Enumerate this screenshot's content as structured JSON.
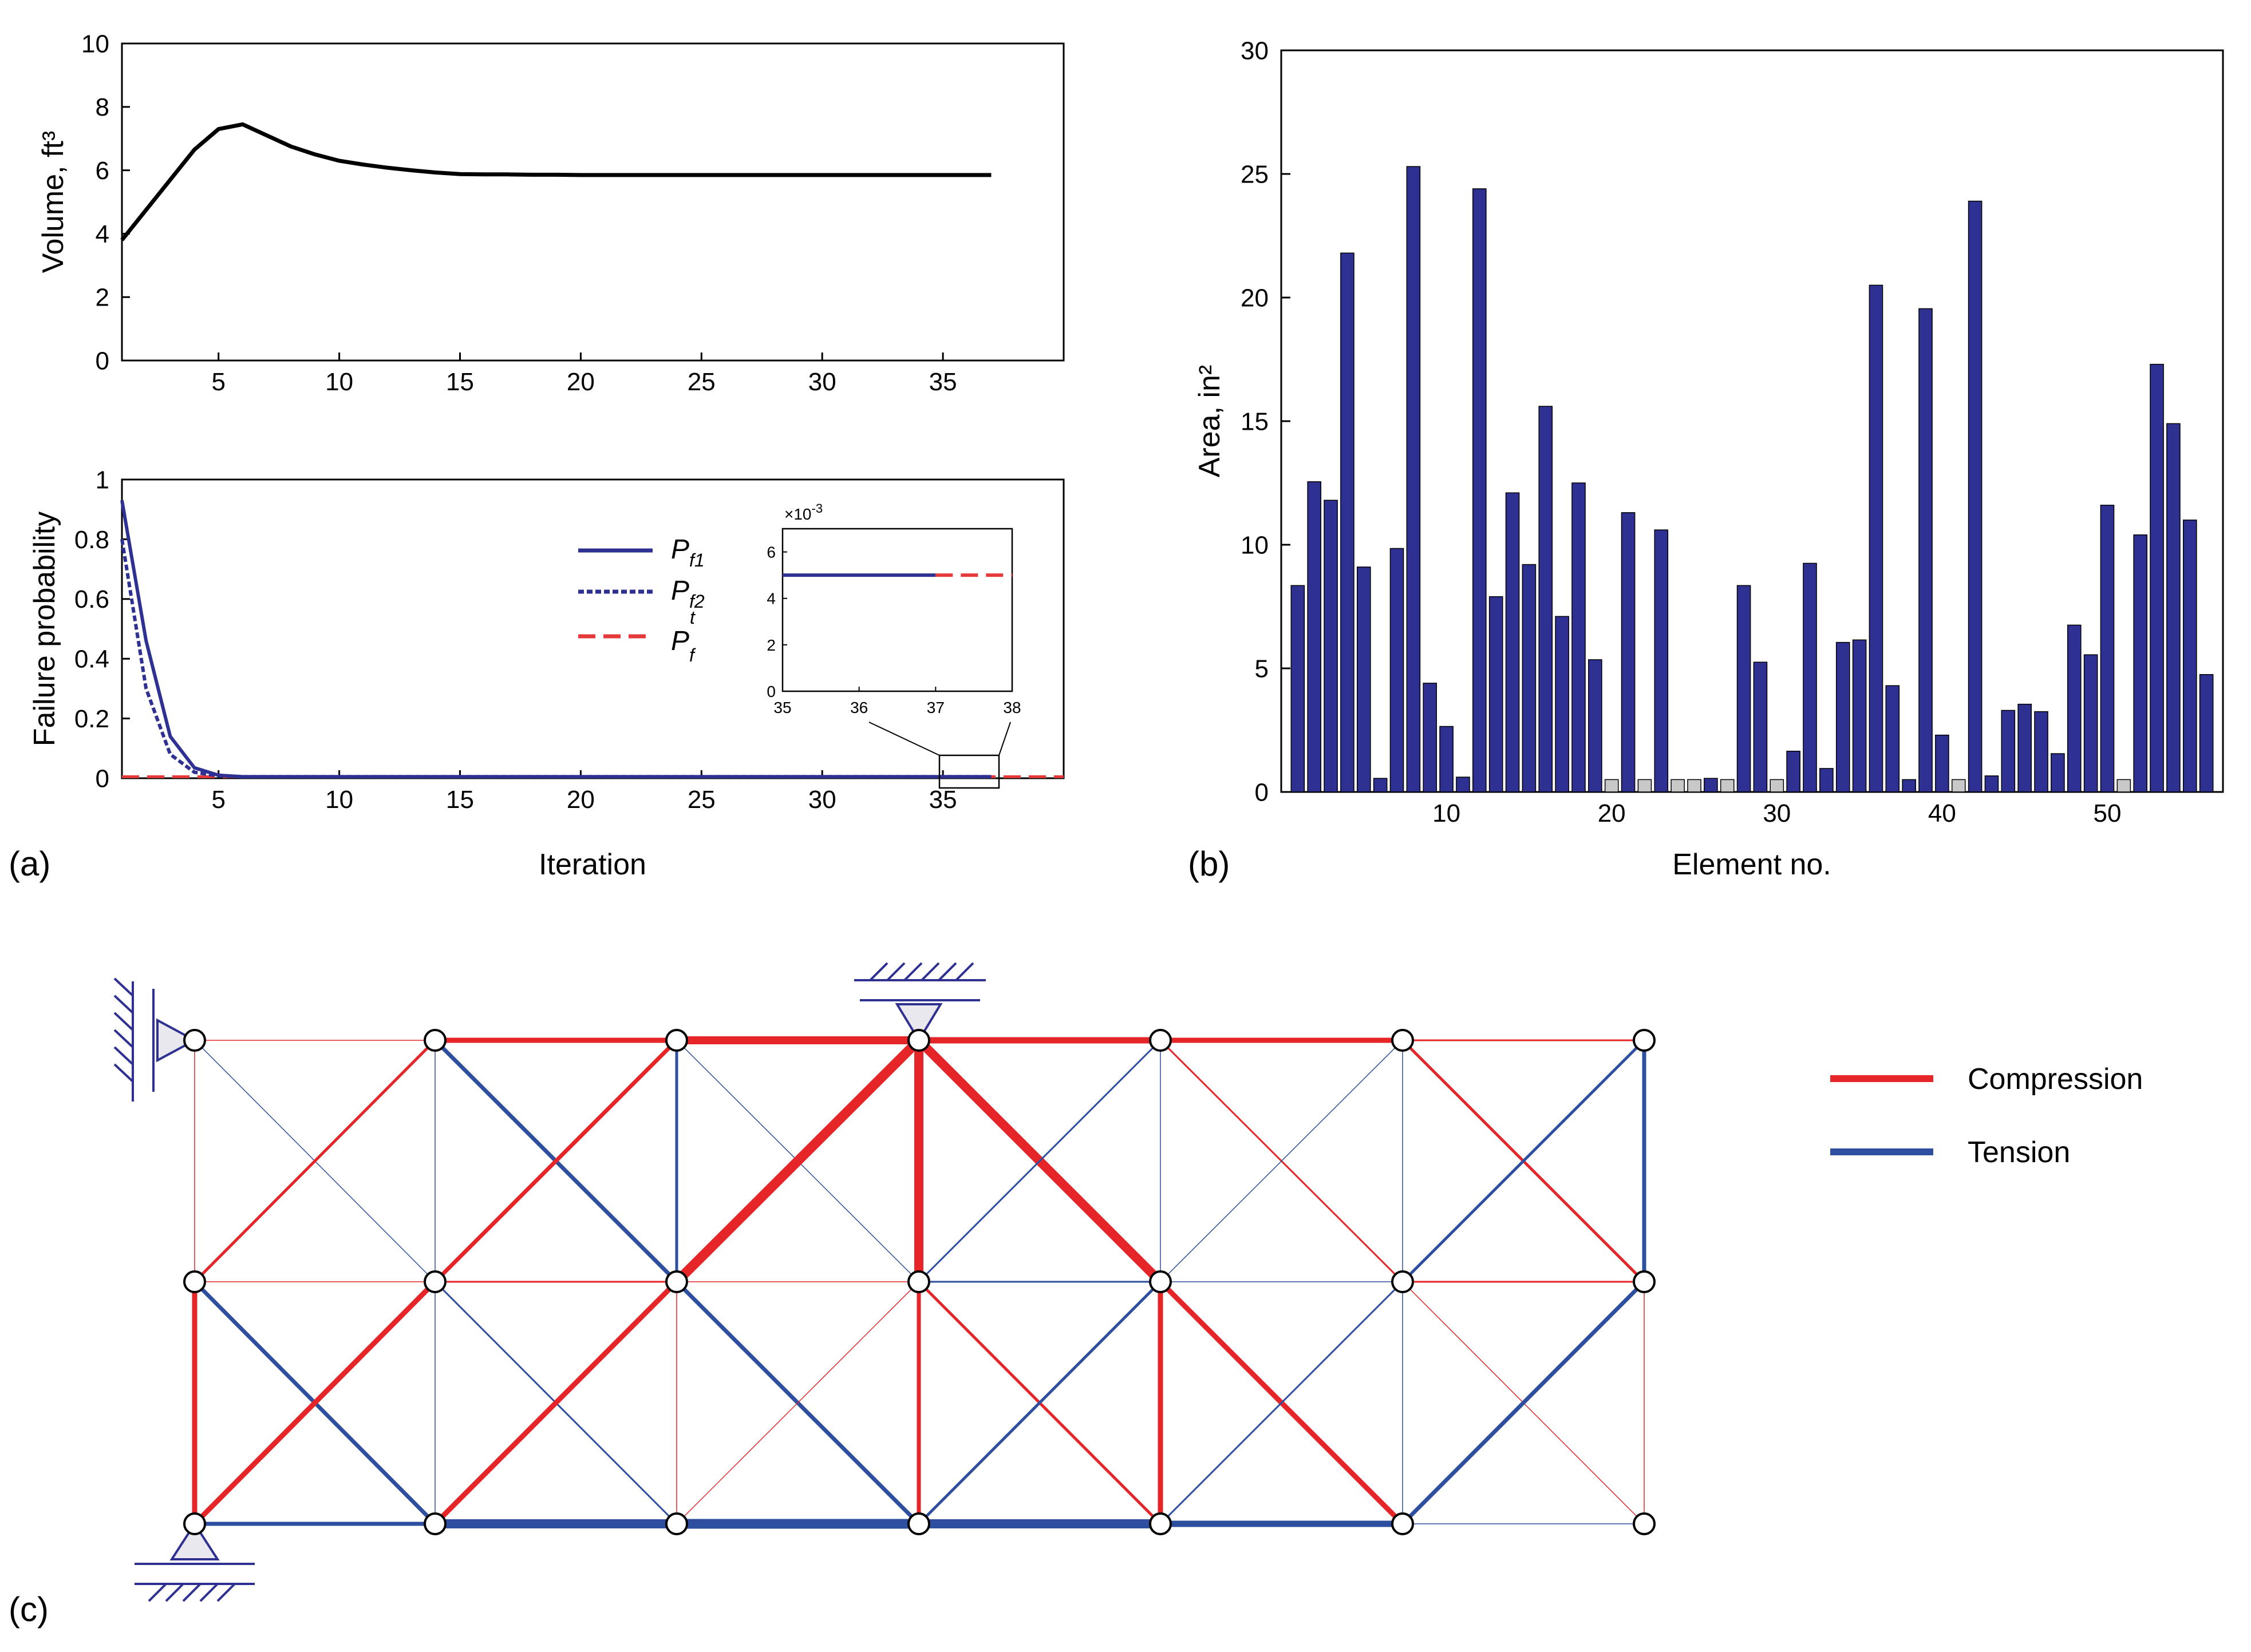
{
  "panels": {
    "a": "(a)",
    "b": "(b)",
    "c": "(c)"
  },
  "chart_data": [
    {
      "id": "volume",
      "type": "line",
      "title": "",
      "xlabel": "",
      "ylabel": "Volume, ft³",
      "xlim": [
        1,
        40
      ],
      "ylim": [
        0,
        10
      ],
      "xticks": [
        "5",
        "10",
        "15",
        "20",
        "25",
        "30",
        "35"
      ],
      "yticks": [
        "0",
        "2",
        "4",
        "6",
        "8",
        "10"
      ],
      "x": [
        1,
        2,
        3,
        4,
        5,
        6,
        7,
        8,
        9,
        10,
        11,
        12,
        13,
        14,
        15,
        16,
        17,
        18,
        19,
        20,
        21,
        22,
        23,
        24,
        25,
        26,
        27,
        28,
        29,
        30,
        31,
        32,
        33,
        34,
        35,
        36,
        37
      ],
      "series": [
        {
          "name": "Volume",
          "color": "#000000",
          "values": [
            3.8,
            4.75,
            5.7,
            6.65,
            7.3,
            7.45,
            7.1,
            6.75,
            6.5,
            6.3,
            6.18,
            6.08,
            6.0,
            5.93,
            5.88,
            5.87,
            5.87,
            5.86,
            5.86,
            5.85,
            5.85,
            5.85,
            5.85,
            5.85,
            5.85,
            5.85,
            5.85,
            5.85,
            5.85,
            5.85,
            5.85,
            5.85,
            5.85,
            5.85,
            5.85,
            5.85,
            5.85
          ]
        }
      ]
    },
    {
      "id": "failure",
      "type": "line",
      "title": "",
      "xlabel": "Iteration",
      "ylabel": "Failure probability",
      "xlim": [
        1,
        40
      ],
      "ylim": [
        0,
        1
      ],
      "xticks": [
        "5",
        "10",
        "15",
        "20",
        "25",
        "30",
        "35"
      ],
      "yticks": [
        "0",
        "0.2",
        "0.4",
        "0.6",
        "0.8",
        "1"
      ],
      "legend_location": "top-right",
      "series": [
        {
          "name": "P",
          "sub": "f1",
          "sup": "",
          "color": "#2e3192",
          "style": "solid",
          "x": [
            1,
            2,
            3,
            4,
            5,
            6,
            7,
            8,
            10,
            15,
            20,
            25,
            30,
            35,
            37
          ],
          "values": [
            0.93,
            0.46,
            0.14,
            0.035,
            0.01,
            0.005,
            0.005,
            0.005,
            0.005,
            0.005,
            0.005,
            0.005,
            0.005,
            0.005,
            0.005
          ]
        },
        {
          "name": "P",
          "sub": "f2",
          "sup": "",
          "color": "#2e3192",
          "style": "dotted",
          "x": [
            1,
            2,
            3,
            4,
            5,
            6,
            7,
            8,
            10,
            15,
            20,
            25,
            30,
            35,
            37
          ],
          "values": [
            0.8,
            0.3,
            0.08,
            0.02,
            0.008,
            0.005,
            0.005,
            0.005,
            0.005,
            0.005,
            0.005,
            0.005,
            0.005,
            0.005,
            0.005
          ]
        },
        {
          "name": "P",
          "sub": "f",
          "sup": "t",
          "color": "#e63a3a",
          "style": "dashed",
          "x": [
            1,
            40
          ],
          "values": [
            0.005,
            0.005
          ]
        }
      ],
      "inset": {
        "xlim": [
          35,
          38
        ],
        "ylim": [
          0,
          7
        ],
        "exponent": "×10",
        "exponent_power": "-3",
        "xticks": [
          "35",
          "36",
          "37",
          "38"
        ],
        "yticks": [
          "0",
          "2",
          "4",
          "6"
        ],
        "series_blue": {
          "x": [
            35,
            37
          ],
          "values": [
            5,
            5
          ]
        },
        "series_red": {
          "x": [
            37,
            38
          ],
          "values": [
            5,
            5
          ]
        }
      }
    },
    {
      "id": "area",
      "type": "bar",
      "title": "",
      "xlabel": "Element no.",
      "ylabel": "Area, in²",
      "xlim": [
        0,
        57
      ],
      "ylim": [
        0,
        30
      ],
      "xticks": [
        "10",
        "20",
        "30",
        "40",
        "50"
      ],
      "yticks": [
        "0",
        "5",
        "10",
        "15",
        "20",
        "25",
        "30"
      ],
      "categories": [
        1,
        2,
        3,
        4,
        5,
        6,
        7,
        8,
        9,
        10,
        11,
        12,
        13,
        14,
        15,
        16,
        17,
        18,
        19,
        20,
        21,
        22,
        23,
        24,
        25,
        26,
        27,
        28,
        29,
        30,
        31,
        32,
        33,
        34,
        35,
        36,
        37,
        38,
        39,
        40,
        41,
        42,
        43,
        44,
        45,
        46,
        47,
        48,
        49,
        50,
        51,
        52,
        53,
        54,
        55,
        56
      ],
      "values": [
        8.35,
        12.55,
        11.8,
        21.8,
        9.1,
        0.55,
        9.85,
        25.3,
        4.4,
        2.65,
        0.6,
        24.4,
        7.9,
        12.1,
        9.2,
        15.6,
        7.1,
        12.5,
        5.35,
        0.5,
        11.3,
        0.5,
        10.6,
        0.5,
        0.5,
        0.55,
        0.5,
        8.35,
        5.25,
        0.5,
        1.65,
        9.25,
        0.95,
        6.05,
        6.15,
        20.5,
        4.3,
        0.5,
        19.55,
        2.3,
        0.5,
        23.9,
        0.65,
        3.3,
        3.55,
        3.25,
        1.55,
        6.75,
        5.55,
        11.6,
        0.5,
        10.4,
        17.3,
        14.9,
        11.0,
        4.75
      ],
      "bar_color": "#2e3192",
      "minimal_color": "#c8c8c8",
      "minimal_elements": [
        20,
        22,
        24,
        25,
        27,
        30,
        41,
        51
      ]
    }
  ],
  "truss": {
    "compression_color": "#e52528",
    "tension_color": "#2e4f9f",
    "legend": {
      "compression": "Compression",
      "tension": "Tension"
    },
    "nodes_cols": 7,
    "nodes_rows": 3
  }
}
